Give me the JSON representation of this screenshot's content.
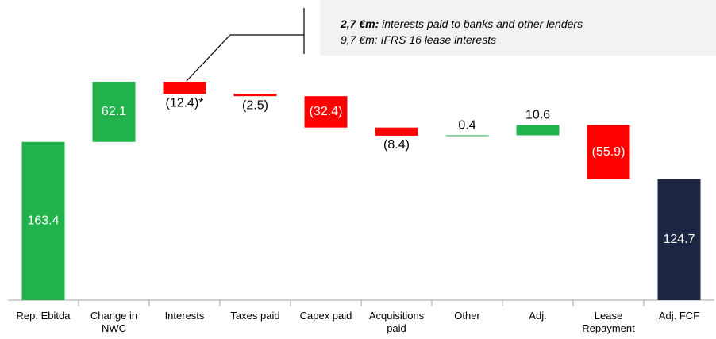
{
  "chart_data": {
    "type": "waterfall",
    "categories": [
      "Rep. Ebitda",
      "Change in NWC",
      "Interests",
      "Taxes paid",
      "Capex paid",
      "Acquisitions paid",
      "Other",
      "Adj.",
      "Lease Repayment",
      "Adj. FCF"
    ],
    "values": [
      163.4,
      62.1,
      -12.4,
      -2.5,
      -32.4,
      -8.4,
      0.4,
      10.6,
      -55.9,
      124.7
    ],
    "value_labels": [
      "163.4",
      "62.1",
      "(12.4)*",
      "(2.5)",
      "(32.4)",
      "(8.4)",
      "0.4",
      "10.6",
      "(55.9)",
      "124.7"
    ],
    "colors": [
      "#21b24b",
      "#21b24b",
      "#ff0000",
      "#ff0000",
      "#ff0000",
      "#ff0000",
      "#21b24b",
      "#21b24b",
      "#ff0000",
      "#1c2541"
    ],
    "annotation": {
      "lines": [
        {
          "bold": "2,7 €m:",
          "text": " interests paid to banks and other lenders"
        },
        {
          "text": "9,7 €m: IFRS 16 lease interests"
        }
      ]
    }
  }
}
